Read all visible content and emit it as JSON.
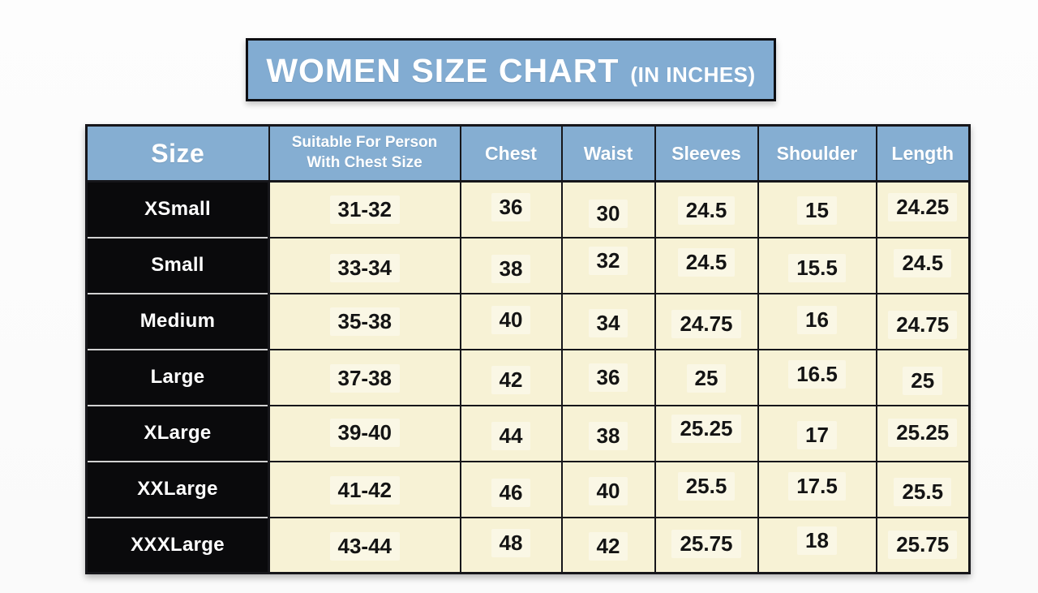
{
  "banner": {
    "title": "WOMEN SIZE CHART",
    "subtitle": "(IN INCHES)"
  },
  "chart_data": {
    "type": "table",
    "title": "WOMEN SIZE CHART (IN INCHES)",
    "units": "inches",
    "columns": [
      "Size",
      "Suitable For Person With Chest Size",
      "Chest",
      "Waist",
      "Sleeves",
      "Shoulder",
      "Length"
    ],
    "rows": [
      [
        "XSmall",
        "31-32",
        "36",
        "30",
        "24.5",
        "15",
        "24.25"
      ],
      [
        "Small",
        "33-34",
        "38",
        "32",
        "24.5",
        "15.5",
        "24.5"
      ],
      [
        "Medium",
        "35-38",
        "40",
        "34",
        "24.75",
        "16",
        "24.75"
      ],
      [
        "Large",
        "37-38",
        "42",
        "36",
        "25",
        "16.5",
        "25"
      ],
      [
        "XLarge",
        "39-40",
        "44",
        "38",
        "25.25",
        "17",
        "25.25"
      ],
      [
        "XXLarge",
        "41-42",
        "46",
        "40",
        "25.5",
        "17.5",
        "25.5"
      ],
      [
        "XXXLarge",
        "43-44",
        "48",
        "42",
        "25.75",
        "18",
        "25.75"
      ]
    ]
  },
  "colors": {
    "header_blue": "#85aed2",
    "banner_blue": "#82acd2",
    "cell_cream": "#f7f2d5",
    "size_black": "#0a0a0c",
    "border_dark": "#16161a",
    "text_white": "#ffffff",
    "text_black": "#141414",
    "page_bg": "#fbfbfb"
  }
}
